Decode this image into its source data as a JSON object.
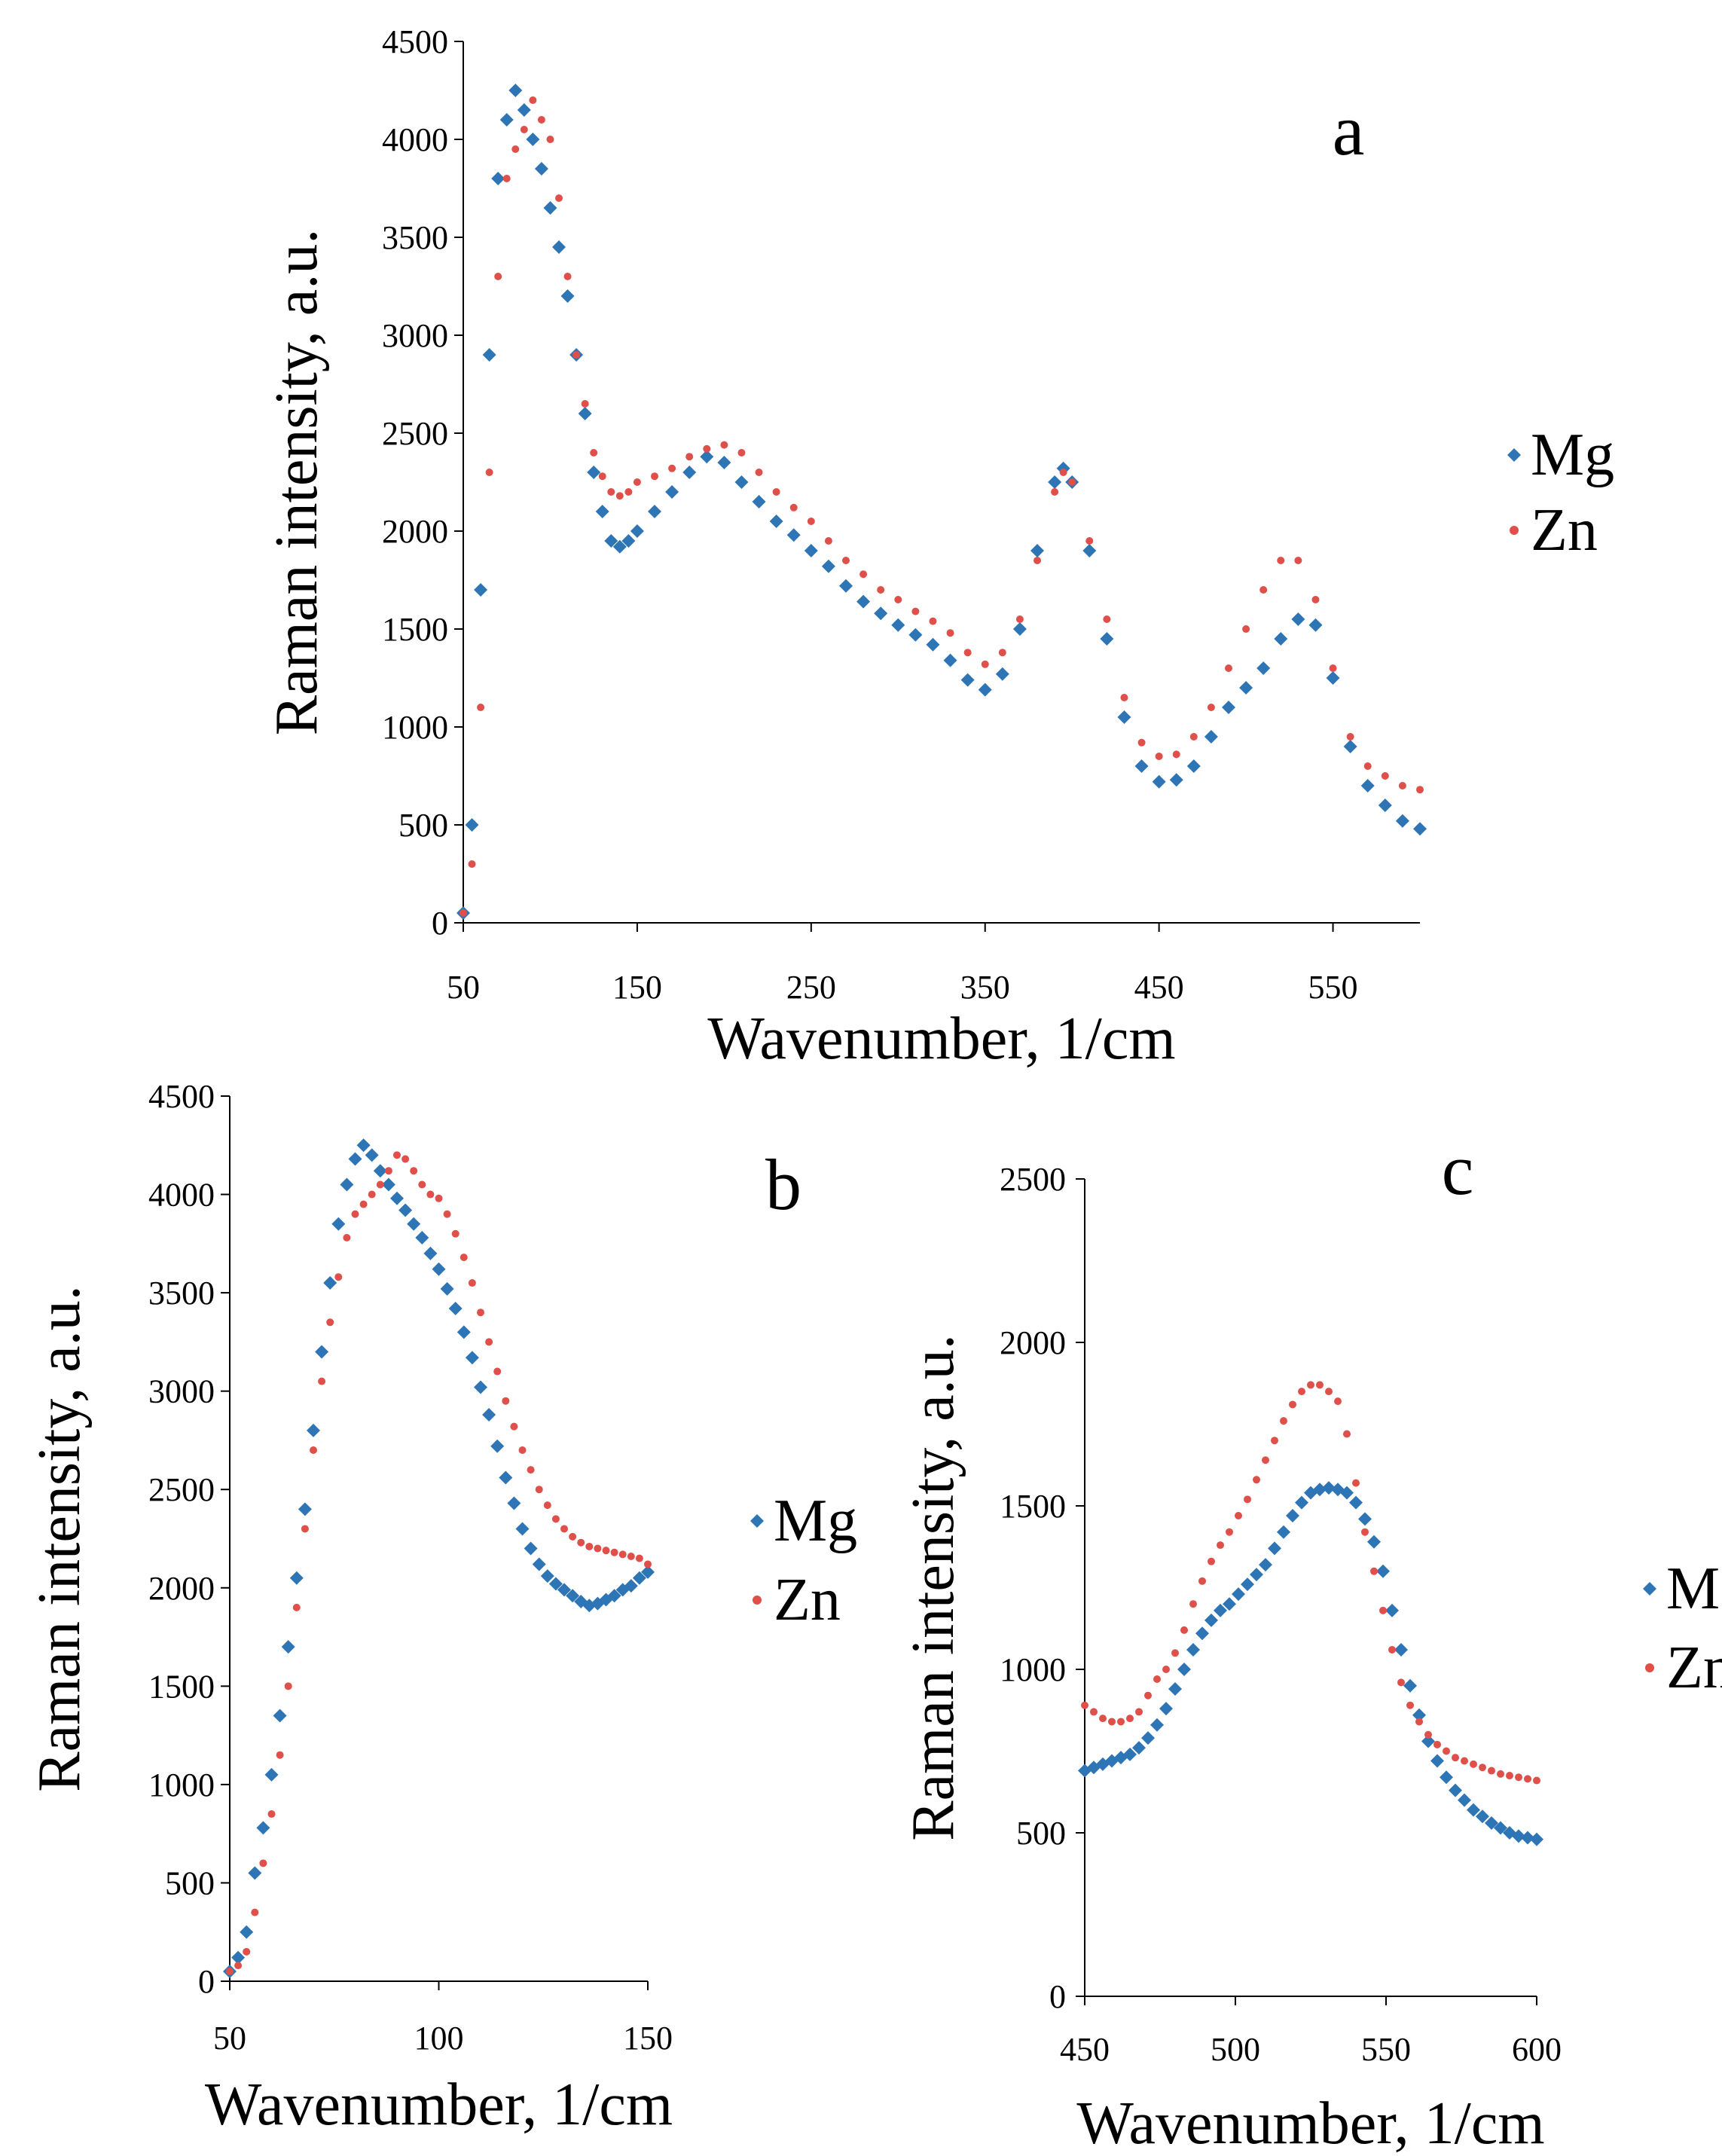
{
  "colors": {
    "Mg": "#2E75B6",
    "Zn": "#E0504A"
  },
  "chart_data": [
    {
      "type": "scatter",
      "panel": "a",
      "xlabel": "Wavenumber, 1/cm",
      "ylabel": "Raman intensity, a.u.",
      "xlim": [
        50,
        600
      ],
      "ylim": [
        0,
        4500
      ],
      "xticks": [
        50,
        150,
        250,
        350,
        450,
        550
      ],
      "yticks": [
        0,
        500,
        1000,
        1500,
        2000,
        2500,
        3000,
        3500,
        4000,
        4500
      ],
      "grid": false,
      "legend": "right",
      "legend_labels": [
        "Mg",
        "Zn"
      ],
      "series": [
        {
          "name": "Mg",
          "marker": "diamond",
          "x": [
            50,
            55,
            60,
            65,
            70,
            75,
            80,
            85,
            90,
            95,
            100,
            105,
            110,
            115,
            120,
            125,
            130,
            135,
            140,
            145,
            150,
            160,
            170,
            180,
            190,
            200,
            210,
            220,
            230,
            240,
            250,
            260,
            270,
            280,
            290,
            300,
            310,
            320,
            330,
            340,
            350,
            360,
            370,
            380,
            390,
            395,
            400,
            410,
            420,
            430,
            440,
            450,
            460,
            470,
            480,
            490,
            500,
            510,
            520,
            530,
            540,
            550,
            560,
            570,
            580,
            590,
            600
          ],
          "y": [
            50,
            500,
            1700,
            2900,
            3800,
            4100,
            4250,
            4150,
            4000,
            3850,
            3650,
            3450,
            3200,
            2900,
            2600,
            2300,
            2100,
            1950,
            1920,
            1950,
            2000,
            2100,
            2200,
            2300,
            2380,
            2350,
            2250,
            2150,
            2050,
            1980,
            1900,
            1820,
            1720,
            1640,
            1580,
            1520,
            1470,
            1420,
            1340,
            1240,
            1190,
            1270,
            1500,
            1900,
            2250,
            2320,
            2250,
            1900,
            1450,
            1050,
            800,
            720,
            730,
            800,
            950,
            1100,
            1200,
            1300,
            1450,
            1550,
            1520,
            1250,
            900,
            700,
            600,
            520,
            480
          ]
        },
        {
          "name": "Zn",
          "marker": "dot",
          "x": [
            50,
            55,
            60,
            65,
            70,
            75,
            80,
            85,
            90,
            95,
            100,
            105,
            110,
            115,
            120,
            125,
            130,
            135,
            140,
            145,
            150,
            160,
            170,
            180,
            190,
            200,
            210,
            220,
            230,
            240,
            250,
            260,
            270,
            280,
            290,
            300,
            310,
            320,
            330,
            340,
            350,
            360,
            370,
            380,
            390,
            395,
            400,
            410,
            420,
            430,
            440,
            450,
            460,
            470,
            480,
            490,
            500,
            510,
            520,
            530,
            540,
            550,
            560,
            570,
            580,
            590,
            600
          ],
          "y": [
            50,
            300,
            1100,
            2300,
            3300,
            3800,
            3950,
            4050,
            4200,
            4100,
            4000,
            3700,
            3300,
            2900,
            2650,
            2400,
            2280,
            2200,
            2180,
            2200,
            2250,
            2280,
            2320,
            2380,
            2420,
            2440,
            2400,
            2300,
            2200,
            2120,
            2050,
            1950,
            1850,
            1780,
            1700,
            1650,
            1590,
            1540,
            1480,
            1380,
            1320,
            1380,
            1550,
            1850,
            2200,
            2300,
            2250,
            1950,
            1550,
            1150,
            920,
            850,
            860,
            950,
            1100,
            1300,
            1500,
            1700,
            1850,
            1850,
            1650,
            1300,
            950,
            800,
            750,
            700,
            680
          ]
        }
      ]
    },
    {
      "type": "scatter",
      "panel": "b",
      "xlabel": "Wavenumber, 1/cm",
      "ylabel": "Raman intensity, a.u.",
      "xlim": [
        50,
        150
      ],
      "ylim": [
        0,
        4500
      ],
      "xticks": [
        50,
        100,
        150
      ],
      "yticks": [
        0,
        500,
        1000,
        1500,
        2000,
        2500,
        3000,
        3500,
        4000,
        4500
      ],
      "grid": false,
      "legend": "right",
      "legend_labels": [
        "Mg",
        "Zn"
      ],
      "series": [
        {
          "name": "Mg",
          "marker": "diamond",
          "x": [
            50,
            52,
            54,
            56,
            58,
            60,
            62,
            64,
            66,
            68,
            70,
            72,
            74,
            76,
            78,
            80,
            82,
            84,
            86,
            88,
            90,
            92,
            94,
            96,
            98,
            100,
            102,
            104,
            106,
            108,
            110,
            112,
            114,
            116,
            118,
            120,
            122,
            124,
            126,
            128,
            130,
            132,
            134,
            136,
            138,
            140,
            142,
            144,
            146,
            148,
            150
          ],
          "y": [
            50,
            120,
            250,
            550,
            780,
            1050,
            1350,
            1700,
            2050,
            2400,
            2800,
            3200,
            3550,
            3850,
            4050,
            4180,
            4250,
            4200,
            4120,
            4050,
            3980,
            3920,
            3850,
            3780,
            3700,
            3620,
            3520,
            3420,
            3300,
            3170,
            3020,
            2880,
            2720,
            2560,
            2430,
            2300,
            2200,
            2120,
            2060,
            2020,
            1990,
            1960,
            1930,
            1910,
            1920,
            1940,
            1960,
            1990,
            2010,
            2050,
            2080
          ]
        },
        {
          "name": "Zn",
          "marker": "dot",
          "x": [
            50,
            52,
            54,
            56,
            58,
            60,
            62,
            64,
            66,
            68,
            70,
            72,
            74,
            76,
            78,
            80,
            82,
            84,
            86,
            88,
            90,
            92,
            94,
            96,
            98,
            100,
            102,
            104,
            106,
            108,
            110,
            112,
            114,
            116,
            118,
            120,
            122,
            124,
            126,
            128,
            130,
            132,
            134,
            136,
            138,
            140,
            142,
            144,
            146,
            148,
            150
          ],
          "y": [
            50,
            80,
            150,
            350,
            600,
            850,
            1150,
            1500,
            1900,
            2300,
            2700,
            3050,
            3350,
            3580,
            3780,
            3900,
            3950,
            4000,
            4050,
            4120,
            4200,
            4180,
            4120,
            4050,
            4000,
            3980,
            3900,
            3800,
            3680,
            3550,
            3400,
            3250,
            3100,
            2950,
            2820,
            2700,
            2600,
            2500,
            2420,
            2350,
            2300,
            2260,
            2230,
            2210,
            2200,
            2190,
            2180,
            2170,
            2160,
            2150,
            2120
          ]
        }
      ]
    },
    {
      "type": "scatter",
      "panel": "c",
      "xlabel": "Wavenumber, 1/cm",
      "ylabel": "Raman intensity, a.u.",
      "xlim": [
        450,
        600
      ],
      "ylim": [
        0,
        2500
      ],
      "xticks": [
        450,
        500,
        550,
        600
      ],
      "yticks": [
        0,
        500,
        1000,
        1500,
        2000,
        2500
      ],
      "grid": false,
      "legend": "right",
      "legend_labels": [
        "Mg",
        "Zn"
      ],
      "series": [
        {
          "name": "Mg",
          "marker": "diamond",
          "x": [
            450,
            453,
            456,
            459,
            462,
            465,
            468,
            471,
            474,
            477,
            480,
            483,
            486,
            489,
            492,
            495,
            498,
            501,
            504,
            507,
            510,
            513,
            516,
            519,
            522,
            525,
            528,
            531,
            534,
            537,
            540,
            543,
            546,
            549,
            552,
            555,
            558,
            561,
            564,
            567,
            570,
            573,
            576,
            579,
            582,
            585,
            588,
            591,
            594,
            597,
            600
          ],
          "y": [
            690,
            700,
            710,
            720,
            730,
            740,
            760,
            790,
            830,
            880,
            940,
            1000,
            1060,
            1110,
            1150,
            1180,
            1200,
            1230,
            1260,
            1290,
            1320,
            1370,
            1420,
            1470,
            1510,
            1540,
            1550,
            1555,
            1550,
            1540,
            1510,
            1460,
            1390,
            1300,
            1180,
            1060,
            950,
            860,
            780,
            720,
            670,
            630,
            600,
            570,
            550,
            530,
            515,
            500,
            490,
            485,
            480
          ]
        },
        {
          "name": "Zn",
          "marker": "dot",
          "x": [
            450,
            453,
            456,
            459,
            462,
            465,
            468,
            471,
            474,
            477,
            480,
            483,
            486,
            489,
            492,
            495,
            498,
            501,
            504,
            507,
            510,
            513,
            516,
            519,
            522,
            525,
            528,
            531,
            534,
            537,
            540,
            543,
            546,
            549,
            552,
            555,
            558,
            561,
            564,
            567,
            570,
            573,
            576,
            579,
            582,
            585,
            588,
            591,
            594,
            597,
            600
          ],
          "y": [
            890,
            870,
            850,
            840,
            840,
            850,
            870,
            920,
            970,
            1000,
            1050,
            1120,
            1200,
            1270,
            1330,
            1380,
            1420,
            1470,
            1520,
            1580,
            1640,
            1700,
            1760,
            1810,
            1850,
            1870,
            1870,
            1850,
            1820,
            1720,
            1570,
            1420,
            1300,
            1180,
            1060,
            960,
            890,
            840,
            800,
            770,
            750,
            730,
            720,
            710,
            700,
            690,
            680,
            675,
            670,
            665,
            660
          ]
        }
      ]
    }
  ]
}
